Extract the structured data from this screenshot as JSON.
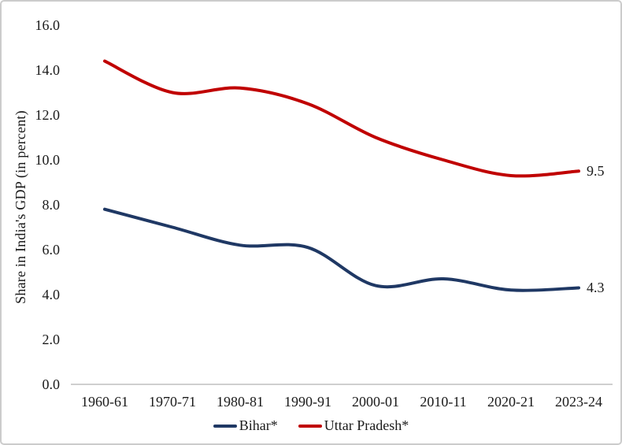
{
  "chart_data": {
    "type": "line",
    "categories": [
      "1960-61",
      "1970-71",
      "1980-81",
      "1990-91",
      "2000-01",
      "2010-11",
      "2020-21",
      "2023-24"
    ],
    "series": [
      {
        "name": "Bihar*",
        "slug": "bihar",
        "color": "#1F3864",
        "values": [
          7.8,
          7.0,
          6.2,
          6.1,
          4.4,
          4.7,
          4.2,
          4.3
        ],
        "end_label": "4.3"
      },
      {
        "name": "Uttar Pradesh*",
        "slug": "uttar-pradesh",
        "color": "#C00000",
        "values": [
          14.4,
          13.0,
          13.2,
          12.5,
          11.0,
          10.0,
          9.3,
          9.5
        ],
        "end_label": "9.5"
      }
    ],
    "title": "",
    "xlabel": "",
    "ylabel": "Share in India's GDP (in percent)",
    "ylim": [
      0,
      16
    ],
    "yticks": [
      "0.0",
      "2.0",
      "4.0",
      "6.0",
      "8.0",
      "10.0",
      "12.0",
      "14.0",
      "16.0"
    ],
    "grid": false,
    "legend_position": "bottom-center",
    "axis_line_color": "#BFBFBF",
    "text_color": "#1a1a1a",
    "background_color": "#ffffff"
  }
}
